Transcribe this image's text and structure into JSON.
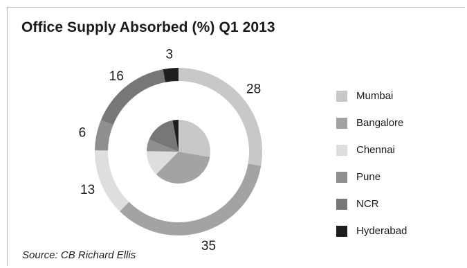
{
  "title": "Office Supply Absorbed (%) Q1 2013",
  "source": "Source: CB Richard Ellis",
  "chart_data": {
    "type": "pie",
    "variant": "donut-with-inner-pie",
    "title": "Office Supply Absorbed (%) Q1 2013",
    "categories": [
      "Mumbai",
      "Bangalore",
      "Chennai",
      "Pune",
      "NCR",
      "Hyderabad"
    ],
    "values": [
      28,
      35,
      13,
      6,
      16,
      3
    ],
    "labels": [
      "28",
      "35",
      "13",
      "6",
      "16",
      "3"
    ],
    "colors": [
      "#c8c8c8",
      "#a3a3a3",
      "#dedede",
      "#8f8f8f",
      "#777777",
      "#1e1e1e"
    ],
    "legend_position": "right"
  }
}
